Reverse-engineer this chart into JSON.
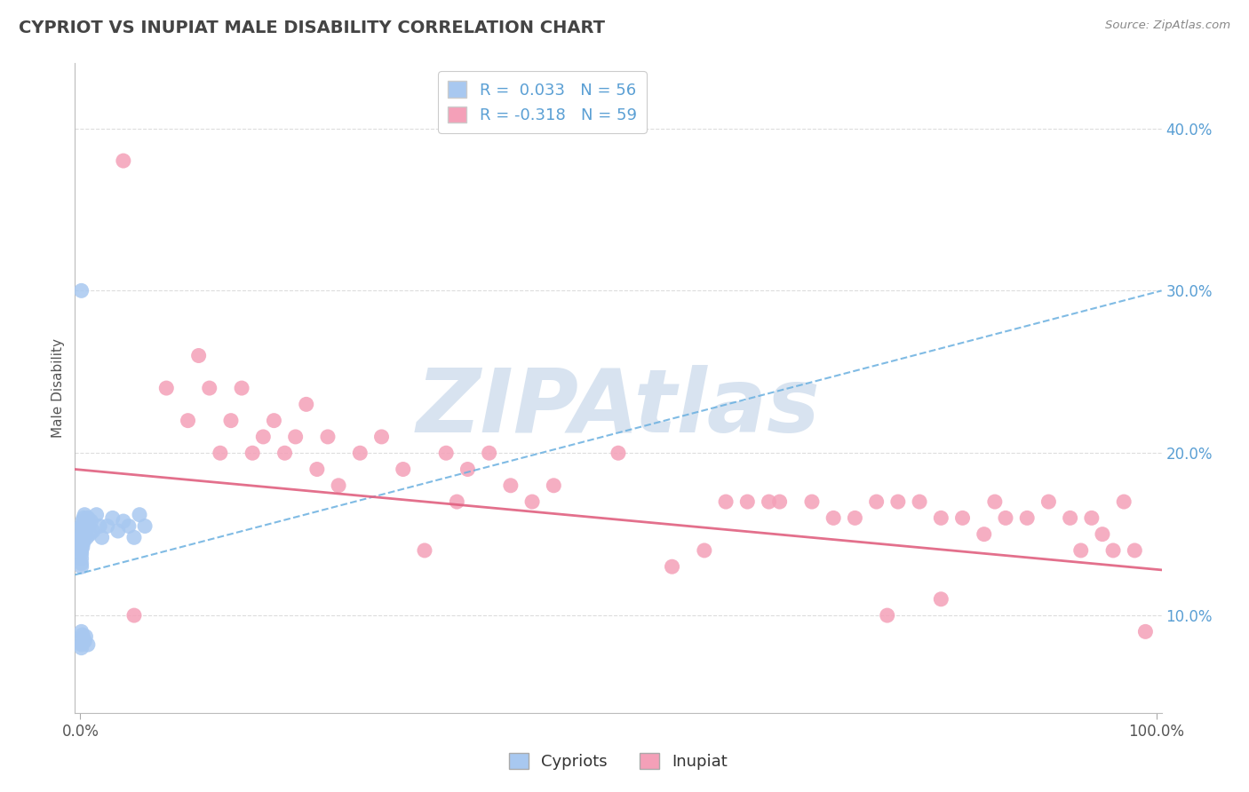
{
  "title": "CYPRIOT VS INUPIAT MALE DISABILITY CORRELATION CHART",
  "source": "Source: ZipAtlas.com",
  "ylabel": "Male Disability",
  "right_yticks": [
    0.1,
    0.2,
    0.3,
    0.4
  ],
  "right_ytick_labels": [
    "10.0%",
    "20.0%",
    "30.0%",
    "40.0%"
  ],
  "cypriot_color": "#a8c8f0",
  "inupiat_color": "#f4a0b8",
  "cypriot_line_color": "#6ab0e0",
  "inupiat_line_color": "#e06080",
  "cypriot_x": [
    0.001,
    0.001,
    0.001,
    0.001,
    0.001,
    0.001,
    0.001,
    0.001,
    0.001,
    0.001,
    0.002,
    0.002,
    0.002,
    0.002,
    0.002,
    0.002,
    0.002,
    0.003,
    0.003,
    0.003,
    0.003,
    0.003,
    0.004,
    0.004,
    0.004,
    0.005,
    0.005,
    0.006,
    0.006,
    0.007,
    0.008,
    0.009,
    0.01,
    0.012,
    0.015,
    0.018,
    0.02,
    0.025,
    0.03,
    0.035,
    0.04,
    0.045,
    0.05,
    0.055,
    0.06,
    0.001,
    0.001,
    0.001,
    0.001,
    0.002,
    0.002,
    0.003,
    0.004,
    0.005,
    0.007,
    0.001
  ],
  "cypriot_y": [
    0.155,
    0.15,
    0.148,
    0.145,
    0.143,
    0.14,
    0.138,
    0.135,
    0.132,
    0.13,
    0.158,
    0.155,
    0.152,
    0.15,
    0.148,
    0.145,
    0.142,
    0.16,
    0.155,
    0.15,
    0.148,
    0.145,
    0.162,
    0.155,
    0.148,
    0.158,
    0.152,
    0.155,
    0.148,
    0.16,
    0.155,
    0.15,
    0.158,
    0.152,
    0.162,
    0.155,
    0.148,
    0.155,
    0.16,
    0.152,
    0.158,
    0.155,
    0.148,
    0.162,
    0.155,
    0.09,
    0.085,
    0.082,
    0.08,
    0.088,
    0.083,
    0.086,
    0.084,
    0.087,
    0.082,
    0.3
  ],
  "inupiat_x": [
    0.04,
    0.05,
    0.08,
    0.1,
    0.11,
    0.12,
    0.13,
    0.14,
    0.15,
    0.16,
    0.17,
    0.18,
    0.19,
    0.2,
    0.21,
    0.22,
    0.23,
    0.24,
    0.26,
    0.28,
    0.3,
    0.32,
    0.34,
    0.35,
    0.36,
    0.38,
    0.4,
    0.42,
    0.44,
    0.5,
    0.55,
    0.58,
    0.6,
    0.62,
    0.64,
    0.65,
    0.68,
    0.7,
    0.72,
    0.74,
    0.76,
    0.78,
    0.8,
    0.82,
    0.84,
    0.85,
    0.86,
    0.88,
    0.9,
    0.92,
    0.93,
    0.94,
    0.95,
    0.96,
    0.97,
    0.98,
    0.99,
    0.8,
    0.75
  ],
  "inupiat_y": [
    0.38,
    0.1,
    0.24,
    0.22,
    0.26,
    0.24,
    0.2,
    0.22,
    0.24,
    0.2,
    0.21,
    0.22,
    0.2,
    0.21,
    0.23,
    0.19,
    0.21,
    0.18,
    0.2,
    0.21,
    0.19,
    0.14,
    0.2,
    0.17,
    0.19,
    0.2,
    0.18,
    0.17,
    0.18,
    0.2,
    0.13,
    0.14,
    0.17,
    0.17,
    0.17,
    0.17,
    0.17,
    0.16,
    0.16,
    0.17,
    0.17,
    0.17,
    0.16,
    0.16,
    0.15,
    0.17,
    0.16,
    0.16,
    0.17,
    0.16,
    0.14,
    0.16,
    0.15,
    0.14,
    0.17,
    0.14,
    0.09,
    0.11,
    0.1
  ],
  "watermark_text": "ZIPAtlas",
  "watermark_color": "#c8d8ea",
  "background_color": "#ffffff",
  "grid_color": "#dddddd",
  "cypriot_R": 0.033,
  "inupiat_R": -0.318,
  "xlim": [
    -0.005,
    1.005
  ],
  "ylim": [
    0.04,
    0.44
  ]
}
